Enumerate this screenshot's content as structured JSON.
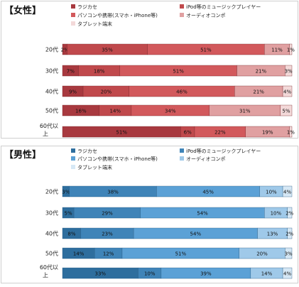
{
  "chart_data": [
    {
      "type": "bar",
      "stacked": true,
      "orientation": "horizontal",
      "percent": true,
      "title": "【女性】",
      "categories": [
        "20代",
        "30代",
        "40代",
        "50代",
        "60代以上"
      ],
      "category_lines": [
        [
          "20代"
        ],
        [
          "30代"
        ],
        [
          "40代"
        ],
        [
          "50代"
        ],
        [
          "60代以",
          "上"
        ]
      ],
      "series": [
        {
          "name": "ラジカセ",
          "color": "#a8393f",
          "values": [
            2,
            7,
            9,
            16,
            51
          ]
        },
        {
          "name": "iPod等のミュージックプレイヤー",
          "color": "#c0494c",
          "values": [
            35,
            18,
            20,
            14,
            6
          ]
        },
        {
          "name": "パソコンや携帯(スマホ・iPhone等)",
          "color": "#d2595c",
          "values": [
            51,
            51,
            46,
            34,
            22
          ]
        },
        {
          "name": "オーディオコンポ",
          "color": "#e0a0a1",
          "values": [
            11,
            21,
            21,
            31,
            19
          ]
        },
        {
          "name": "タブレット端末",
          "color": "#f3d9d9",
          "values": [
            1,
            3,
            4,
            5,
            1
          ]
        }
      ],
      "data_labels": [
        [
          "2%",
          "35%",
          "51%",
          "11%",
          "1%"
        ],
        [
          "7%",
          "18%",
          "51%",
          "21%",
          "3%"
        ],
        [
          "9%",
          "20%",
          "46%",
          "21%",
          "4%"
        ],
        [
          "16%",
          "14%",
          "34%",
          "31%",
          "5%"
        ],
        [
          "51%",
          "6%",
          "22%",
          "19%",
          "1%"
        ]
      ],
      "legend": {
        "placement": "top",
        "columns": 2
      }
    },
    {
      "type": "bar",
      "stacked": true,
      "orientation": "horizontal",
      "percent": true,
      "title": "【男性】",
      "categories": [
        "20代",
        "30代",
        "40代",
        "50代",
        "60代以上"
      ],
      "category_lines": [
        [
          "20代"
        ],
        [
          "30代"
        ],
        [
          "40代"
        ],
        [
          "50代"
        ],
        [
          "60代以",
          "上"
        ]
      ],
      "series": [
        {
          "name": "ラジカセ",
          "color": "#2e6e9e",
          "values": [
            3,
            5,
            8,
            14,
            33
          ]
        },
        {
          "name": "iPod等のミュージックプレイヤー",
          "color": "#3f84b8",
          "values": [
            38,
            29,
            23,
            12,
            10
          ]
        },
        {
          "name": "パソコンや携帯(スマホ・iPhone等)",
          "color": "#5ba1d6",
          "values": [
            45,
            54,
            54,
            51,
            39
          ]
        },
        {
          "name": "オーディオコンポ",
          "color": "#9fc9e9",
          "values": [
            10,
            10,
            13,
            20,
            14
          ]
        },
        {
          "name": "タブレット端末",
          "color": "#d6e8f5",
          "values": [
            4,
            2,
            2,
            3,
            4
          ]
        }
      ],
      "data_labels": [
        [
          "3%",
          "38%",
          "45%",
          "10%",
          "4%"
        ],
        [
          "5%",
          "29%",
          "54%",
          "10%",
          "2%"
        ],
        [
          "8%",
          "23%",
          "54%",
          "13%",
          "2%"
        ],
        [
          "14%",
          "12%",
          "51%",
          "20%",
          "3%"
        ],
        [
          "33%",
          "10%",
          "39%",
          "14%",
          "4%"
        ]
      ],
      "legend": {
        "placement": "top",
        "columns": 2
      }
    }
  ]
}
